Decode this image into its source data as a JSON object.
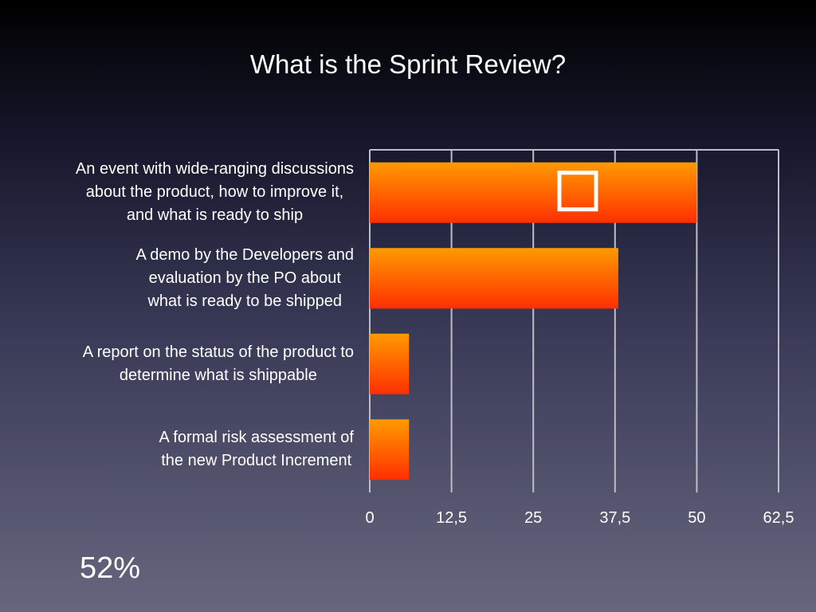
{
  "slide": {
    "title": "What is the Sprint Review?",
    "footnote": "52%"
  },
  "chart_data": {
    "type": "bar",
    "orientation": "horizontal",
    "title": "What is the Sprint Review?",
    "categories": [
      "An event with wide-ranging discussions\nabout the product, how to improve it,\nand what is ready to ship",
      "A demo by the Developers and\nevaluation by the PO about\nwhat is ready to be shipped",
      "A report on the status of the product to\ndetermine what is shippable",
      "A formal risk assessment of\nthe new Product Increment"
    ],
    "values": [
      50,
      38,
      6,
      6
    ],
    "xlim": [
      0,
      62.5
    ],
    "xticks": [
      "0",
      "12,5",
      "25",
      "37,5",
      "50",
      "62,5"
    ],
    "grid": true,
    "correct_marker_index": 0,
    "colors": {
      "bar_top": "#ff9a00",
      "bar_bottom": "#ff2f00",
      "grid": "#bdbdc8"
    }
  }
}
